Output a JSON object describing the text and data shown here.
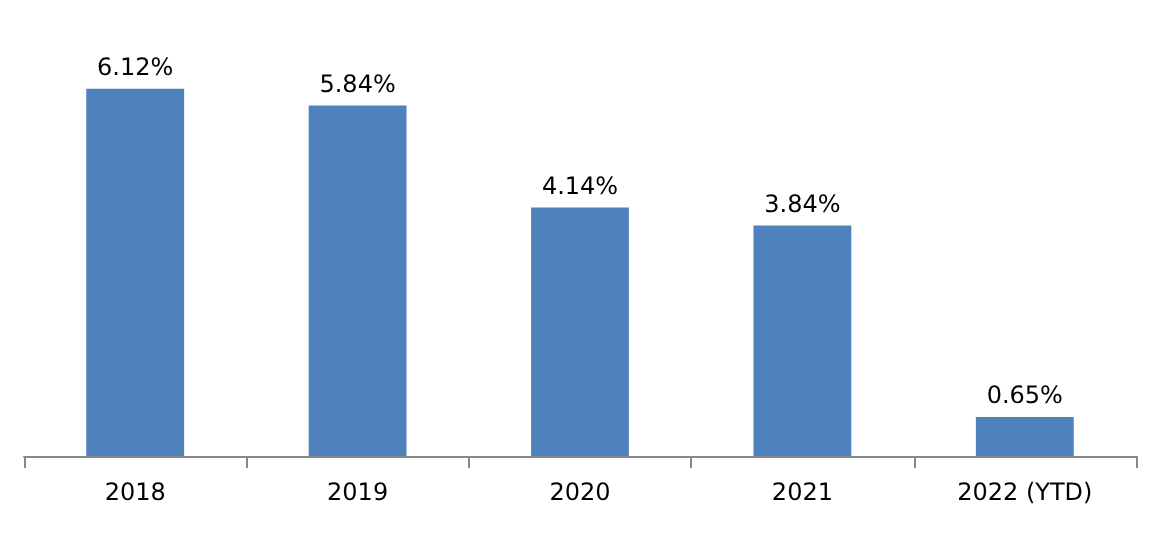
{
  "chart_data": {
    "type": "bar",
    "categories": [
      "2018",
      "2019",
      "2020",
      "2021",
      "2022 (YTD)"
    ],
    "values": [
      6.12,
      5.84,
      4.14,
      3.84,
      0.65
    ],
    "value_labels": [
      "6.12%",
      "5.84%",
      "4.14%",
      "3.84%",
      "0.65%"
    ],
    "color": "#4f81bd"
  }
}
